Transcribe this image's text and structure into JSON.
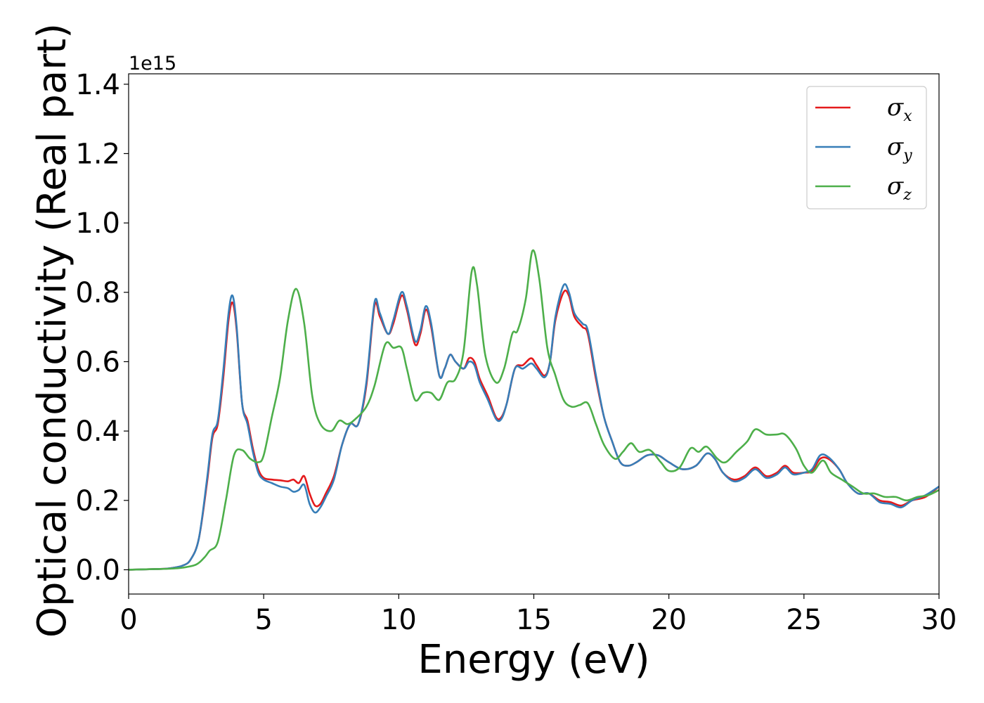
{
  "chart_data": {
    "type": "line",
    "title": "",
    "xlabel": "Energy (eV)",
    "ylabel": "Optical conductivity (Real part)",
    "y_offset_label": "1e15",
    "xlim": [
      0,
      30
    ],
    "ylim": [
      -0.07,
      1.43
    ],
    "x_ticks": [
      0,
      5,
      10,
      15,
      20,
      25,
      30
    ],
    "x_tick_labels": [
      "0",
      "5",
      "10",
      "15",
      "20",
      "25",
      "30"
    ],
    "y_ticks": [
      0.0,
      0.2,
      0.4,
      0.6,
      0.8,
      1.0,
      1.2,
      1.4
    ],
    "y_tick_labels": [
      "0.0",
      "0.2",
      "0.4",
      "0.6",
      "0.8",
      "1.0",
      "1.2",
      "1.4"
    ],
    "grid": false,
    "legend_position": "top-right",
    "series": [
      {
        "name": "σx",
        "legend_symbol": "σ",
        "legend_subscript": "x",
        "color": "#e41a1c",
        "points": [
          [
            0,
            0
          ],
          [
            1,
            0.002
          ],
          [
            1.5,
            0.004
          ],
          [
            2,
            0.012
          ],
          [
            2.3,
            0.03
          ],
          [
            2.6,
            0.09
          ],
          [
            2.9,
            0.25
          ],
          [
            3.1,
            0.38
          ],
          [
            3.3,
            0.42
          ],
          [
            3.5,
            0.55
          ],
          [
            3.7,
            0.72
          ],
          [
            3.85,
            0.77
          ],
          [
            4.0,
            0.69
          ],
          [
            4.2,
            0.48
          ],
          [
            4.4,
            0.43
          ],
          [
            4.6,
            0.35
          ],
          [
            4.8,
            0.29
          ],
          [
            5.0,
            0.265
          ],
          [
            5.3,
            0.26
          ],
          [
            5.6,
            0.258
          ],
          [
            5.9,
            0.255
          ],
          [
            6.1,
            0.26
          ],
          [
            6.3,
            0.25
          ],
          [
            6.5,
            0.27
          ],
          [
            6.7,
            0.22
          ],
          [
            6.9,
            0.185
          ],
          [
            7.1,
            0.19
          ],
          [
            7.3,
            0.22
          ],
          [
            7.6,
            0.27
          ],
          [
            7.9,
            0.36
          ],
          [
            8.2,
            0.42
          ],
          [
            8.5,
            0.42
          ],
          [
            8.8,
            0.53
          ],
          [
            9.1,
            0.76
          ],
          [
            9.3,
            0.73
          ],
          [
            9.6,
            0.68
          ],
          [
            9.8,
            0.71
          ],
          [
            10.1,
            0.79
          ],
          [
            10.3,
            0.75
          ],
          [
            10.6,
            0.65
          ],
          [
            10.8,
            0.68
          ],
          [
            11.0,
            0.75
          ],
          [
            11.2,
            0.7
          ],
          [
            11.5,
            0.56
          ],
          [
            11.7,
            0.58
          ],
          [
            11.9,
            0.62
          ],
          [
            12.1,
            0.6
          ],
          [
            12.4,
            0.58
          ],
          [
            12.6,
            0.61
          ],
          [
            12.8,
            0.6
          ],
          [
            13.0,
            0.55
          ],
          [
            13.3,
            0.5
          ],
          [
            13.6,
            0.44
          ],
          [
            13.8,
            0.44
          ],
          [
            14.0,
            0.48
          ],
          [
            14.3,
            0.58
          ],
          [
            14.6,
            0.59
          ],
          [
            14.9,
            0.61
          ],
          [
            15.1,
            0.59
          ],
          [
            15.4,
            0.56
          ],
          [
            15.6,
            0.6
          ],
          [
            15.8,
            0.72
          ],
          [
            16.1,
            0.8
          ],
          [
            16.3,
            0.79
          ],
          [
            16.5,
            0.73
          ],
          [
            16.8,
            0.7
          ],
          [
            17.0,
            0.68
          ],
          [
            17.3,
            0.55
          ],
          [
            17.6,
            0.44
          ],
          [
            17.9,
            0.37
          ],
          [
            18.2,
            0.31
          ],
          [
            18.5,
            0.3
          ],
          [
            18.8,
            0.31
          ],
          [
            19.2,
            0.33
          ],
          [
            19.6,
            0.33
          ],
          [
            20.0,
            0.31
          ],
          [
            20.5,
            0.29
          ],
          [
            21.0,
            0.3
          ],
          [
            21.4,
            0.335
          ],
          [
            21.7,
            0.32
          ],
          [
            22.0,
            0.28
          ],
          [
            22.4,
            0.26
          ],
          [
            22.8,
            0.27
          ],
          [
            23.2,
            0.295
          ],
          [
            23.6,
            0.27
          ],
          [
            24.0,
            0.28
          ],
          [
            24.3,
            0.3
          ],
          [
            24.6,
            0.28
          ],
          [
            25.0,
            0.28
          ],
          [
            25.3,
            0.285
          ],
          [
            25.6,
            0.32
          ],
          [
            25.9,
            0.32
          ],
          [
            26.3,
            0.29
          ],
          [
            26.6,
            0.25
          ],
          [
            27.0,
            0.22
          ],
          [
            27.4,
            0.22
          ],
          [
            27.8,
            0.2
          ],
          [
            28.2,
            0.195
          ],
          [
            28.6,
            0.185
          ],
          [
            29.0,
            0.2
          ],
          [
            29.5,
            0.21
          ],
          [
            30.0,
            0.24
          ]
        ]
      },
      {
        "name": "σy",
        "legend_symbol": "σ",
        "legend_subscript": "y",
        "color": "#377eb8",
        "points": [
          [
            0,
            0
          ],
          [
            1,
            0.002
          ],
          [
            1.5,
            0.004
          ],
          [
            2,
            0.012
          ],
          [
            2.3,
            0.03
          ],
          [
            2.6,
            0.09
          ],
          [
            2.9,
            0.26
          ],
          [
            3.1,
            0.39
          ],
          [
            3.3,
            0.43
          ],
          [
            3.5,
            0.57
          ],
          [
            3.7,
            0.74
          ],
          [
            3.85,
            0.79
          ],
          [
            4.0,
            0.7
          ],
          [
            4.2,
            0.48
          ],
          [
            4.4,
            0.42
          ],
          [
            4.6,
            0.34
          ],
          [
            4.8,
            0.28
          ],
          [
            5.0,
            0.26
          ],
          [
            5.3,
            0.25
          ],
          [
            5.6,
            0.24
          ],
          [
            5.9,
            0.235
          ],
          [
            6.1,
            0.225
          ],
          [
            6.3,
            0.23
          ],
          [
            6.5,
            0.245
          ],
          [
            6.7,
            0.19
          ],
          [
            6.9,
            0.165
          ],
          [
            7.1,
            0.18
          ],
          [
            7.3,
            0.21
          ],
          [
            7.6,
            0.26
          ],
          [
            7.9,
            0.36
          ],
          [
            8.2,
            0.42
          ],
          [
            8.5,
            0.42
          ],
          [
            8.8,
            0.54
          ],
          [
            9.1,
            0.77
          ],
          [
            9.3,
            0.74
          ],
          [
            9.6,
            0.68
          ],
          [
            9.8,
            0.72
          ],
          [
            10.1,
            0.8
          ],
          [
            10.3,
            0.76
          ],
          [
            10.6,
            0.66
          ],
          [
            10.8,
            0.69
          ],
          [
            11.0,
            0.76
          ],
          [
            11.2,
            0.71
          ],
          [
            11.5,
            0.56
          ],
          [
            11.7,
            0.58
          ],
          [
            11.9,
            0.62
          ],
          [
            12.1,
            0.6
          ],
          [
            12.4,
            0.58
          ],
          [
            12.6,
            0.6
          ],
          [
            12.8,
            0.59
          ],
          [
            13.0,
            0.54
          ],
          [
            13.3,
            0.49
          ],
          [
            13.6,
            0.435
          ],
          [
            13.8,
            0.435
          ],
          [
            14.0,
            0.48
          ],
          [
            14.3,
            0.58
          ],
          [
            14.6,
            0.58
          ],
          [
            14.9,
            0.595
          ],
          [
            15.1,
            0.58
          ],
          [
            15.4,
            0.555
          ],
          [
            15.6,
            0.6
          ],
          [
            15.8,
            0.73
          ],
          [
            16.1,
            0.82
          ],
          [
            16.3,
            0.8
          ],
          [
            16.5,
            0.74
          ],
          [
            16.8,
            0.71
          ],
          [
            17.0,
            0.69
          ],
          [
            17.3,
            0.56
          ],
          [
            17.6,
            0.44
          ],
          [
            17.9,
            0.37
          ],
          [
            18.2,
            0.31
          ],
          [
            18.5,
            0.3
          ],
          [
            18.8,
            0.31
          ],
          [
            19.2,
            0.33
          ],
          [
            19.6,
            0.33
          ],
          [
            20.0,
            0.31
          ],
          [
            20.5,
            0.29
          ],
          [
            21.0,
            0.3
          ],
          [
            21.4,
            0.335
          ],
          [
            21.7,
            0.32
          ],
          [
            22.0,
            0.28
          ],
          [
            22.4,
            0.255
          ],
          [
            22.8,
            0.265
          ],
          [
            23.2,
            0.29
          ],
          [
            23.6,
            0.265
          ],
          [
            24.0,
            0.275
          ],
          [
            24.3,
            0.295
          ],
          [
            24.6,
            0.275
          ],
          [
            25.0,
            0.28
          ],
          [
            25.3,
            0.29
          ],
          [
            25.6,
            0.33
          ],
          [
            25.9,
            0.325
          ],
          [
            26.3,
            0.29
          ],
          [
            26.6,
            0.25
          ],
          [
            27.0,
            0.22
          ],
          [
            27.4,
            0.22
          ],
          [
            27.8,
            0.195
          ],
          [
            28.2,
            0.19
          ],
          [
            28.6,
            0.18
          ],
          [
            29.0,
            0.2
          ],
          [
            29.5,
            0.215
          ],
          [
            30.0,
            0.24
          ]
        ]
      },
      {
        "name": "σz",
        "legend_symbol": "σ",
        "legend_subscript": "z",
        "color": "#4daf4a",
        "points": [
          [
            0,
            0
          ],
          [
            1,
            0.002
          ],
          [
            1.5,
            0.003
          ],
          [
            2,
            0.006
          ],
          [
            2.5,
            0.015
          ],
          [
            2.8,
            0.035
          ],
          [
            3.0,
            0.055
          ],
          [
            3.3,
            0.08
          ],
          [
            3.6,
            0.2
          ],
          [
            3.9,
            0.33
          ],
          [
            4.2,
            0.345
          ],
          [
            4.5,
            0.32
          ],
          [
            4.8,
            0.31
          ],
          [
            5.0,
            0.33
          ],
          [
            5.3,
            0.44
          ],
          [
            5.6,
            0.55
          ],
          [
            5.9,
            0.72
          ],
          [
            6.2,
            0.81
          ],
          [
            6.5,
            0.71
          ],
          [
            6.8,
            0.5
          ],
          [
            7.1,
            0.42
          ],
          [
            7.5,
            0.4
          ],
          [
            7.8,
            0.43
          ],
          [
            8.1,
            0.42
          ],
          [
            8.4,
            0.435
          ],
          [
            8.8,
            0.47
          ],
          [
            9.1,
            0.53
          ],
          [
            9.5,
            0.65
          ],
          [
            9.8,
            0.64
          ],
          [
            10.1,
            0.64
          ],
          [
            10.3,
            0.58
          ],
          [
            10.6,
            0.49
          ],
          [
            10.9,
            0.51
          ],
          [
            11.2,
            0.51
          ],
          [
            11.5,
            0.49
          ],
          [
            11.8,
            0.54
          ],
          [
            12.1,
            0.55
          ],
          [
            12.4,
            0.63
          ],
          [
            12.7,
            0.86
          ],
          [
            12.9,
            0.82
          ],
          [
            13.2,
            0.62
          ],
          [
            13.6,
            0.54
          ],
          [
            13.9,
            0.58
          ],
          [
            14.2,
            0.68
          ],
          [
            14.4,
            0.69
          ],
          [
            14.7,
            0.78
          ],
          [
            14.95,
            0.92
          ],
          [
            15.2,
            0.84
          ],
          [
            15.5,
            0.64
          ],
          [
            15.8,
            0.56
          ],
          [
            16.1,
            0.49
          ],
          [
            16.4,
            0.47
          ],
          [
            16.7,
            0.475
          ],
          [
            17.0,
            0.48
          ],
          [
            17.3,
            0.42
          ],
          [
            17.6,
            0.36
          ],
          [
            18.0,
            0.32
          ],
          [
            18.3,
            0.34
          ],
          [
            18.6,
            0.365
          ],
          [
            18.9,
            0.34
          ],
          [
            19.3,
            0.345
          ],
          [
            19.7,
            0.31
          ],
          [
            20.0,
            0.285
          ],
          [
            20.4,
            0.295
          ],
          [
            20.8,
            0.35
          ],
          [
            21.1,
            0.34
          ],
          [
            21.4,
            0.355
          ],
          [
            21.8,
            0.32
          ],
          [
            22.1,
            0.31
          ],
          [
            22.5,
            0.34
          ],
          [
            22.9,
            0.37
          ],
          [
            23.2,
            0.405
          ],
          [
            23.6,
            0.39
          ],
          [
            24.0,
            0.39
          ],
          [
            24.3,
            0.39
          ],
          [
            24.7,
            0.35
          ],
          [
            25.0,
            0.3
          ],
          [
            25.3,
            0.28
          ],
          [
            25.7,
            0.315
          ],
          [
            26.0,
            0.28
          ],
          [
            26.4,
            0.26
          ],
          [
            26.8,
            0.24
          ],
          [
            27.2,
            0.22
          ],
          [
            27.6,
            0.22
          ],
          [
            28.0,
            0.21
          ],
          [
            28.4,
            0.21
          ],
          [
            28.8,
            0.2
          ],
          [
            29.2,
            0.21
          ],
          [
            29.6,
            0.215
          ],
          [
            30.0,
            0.23
          ]
        ]
      }
    ]
  }
}
